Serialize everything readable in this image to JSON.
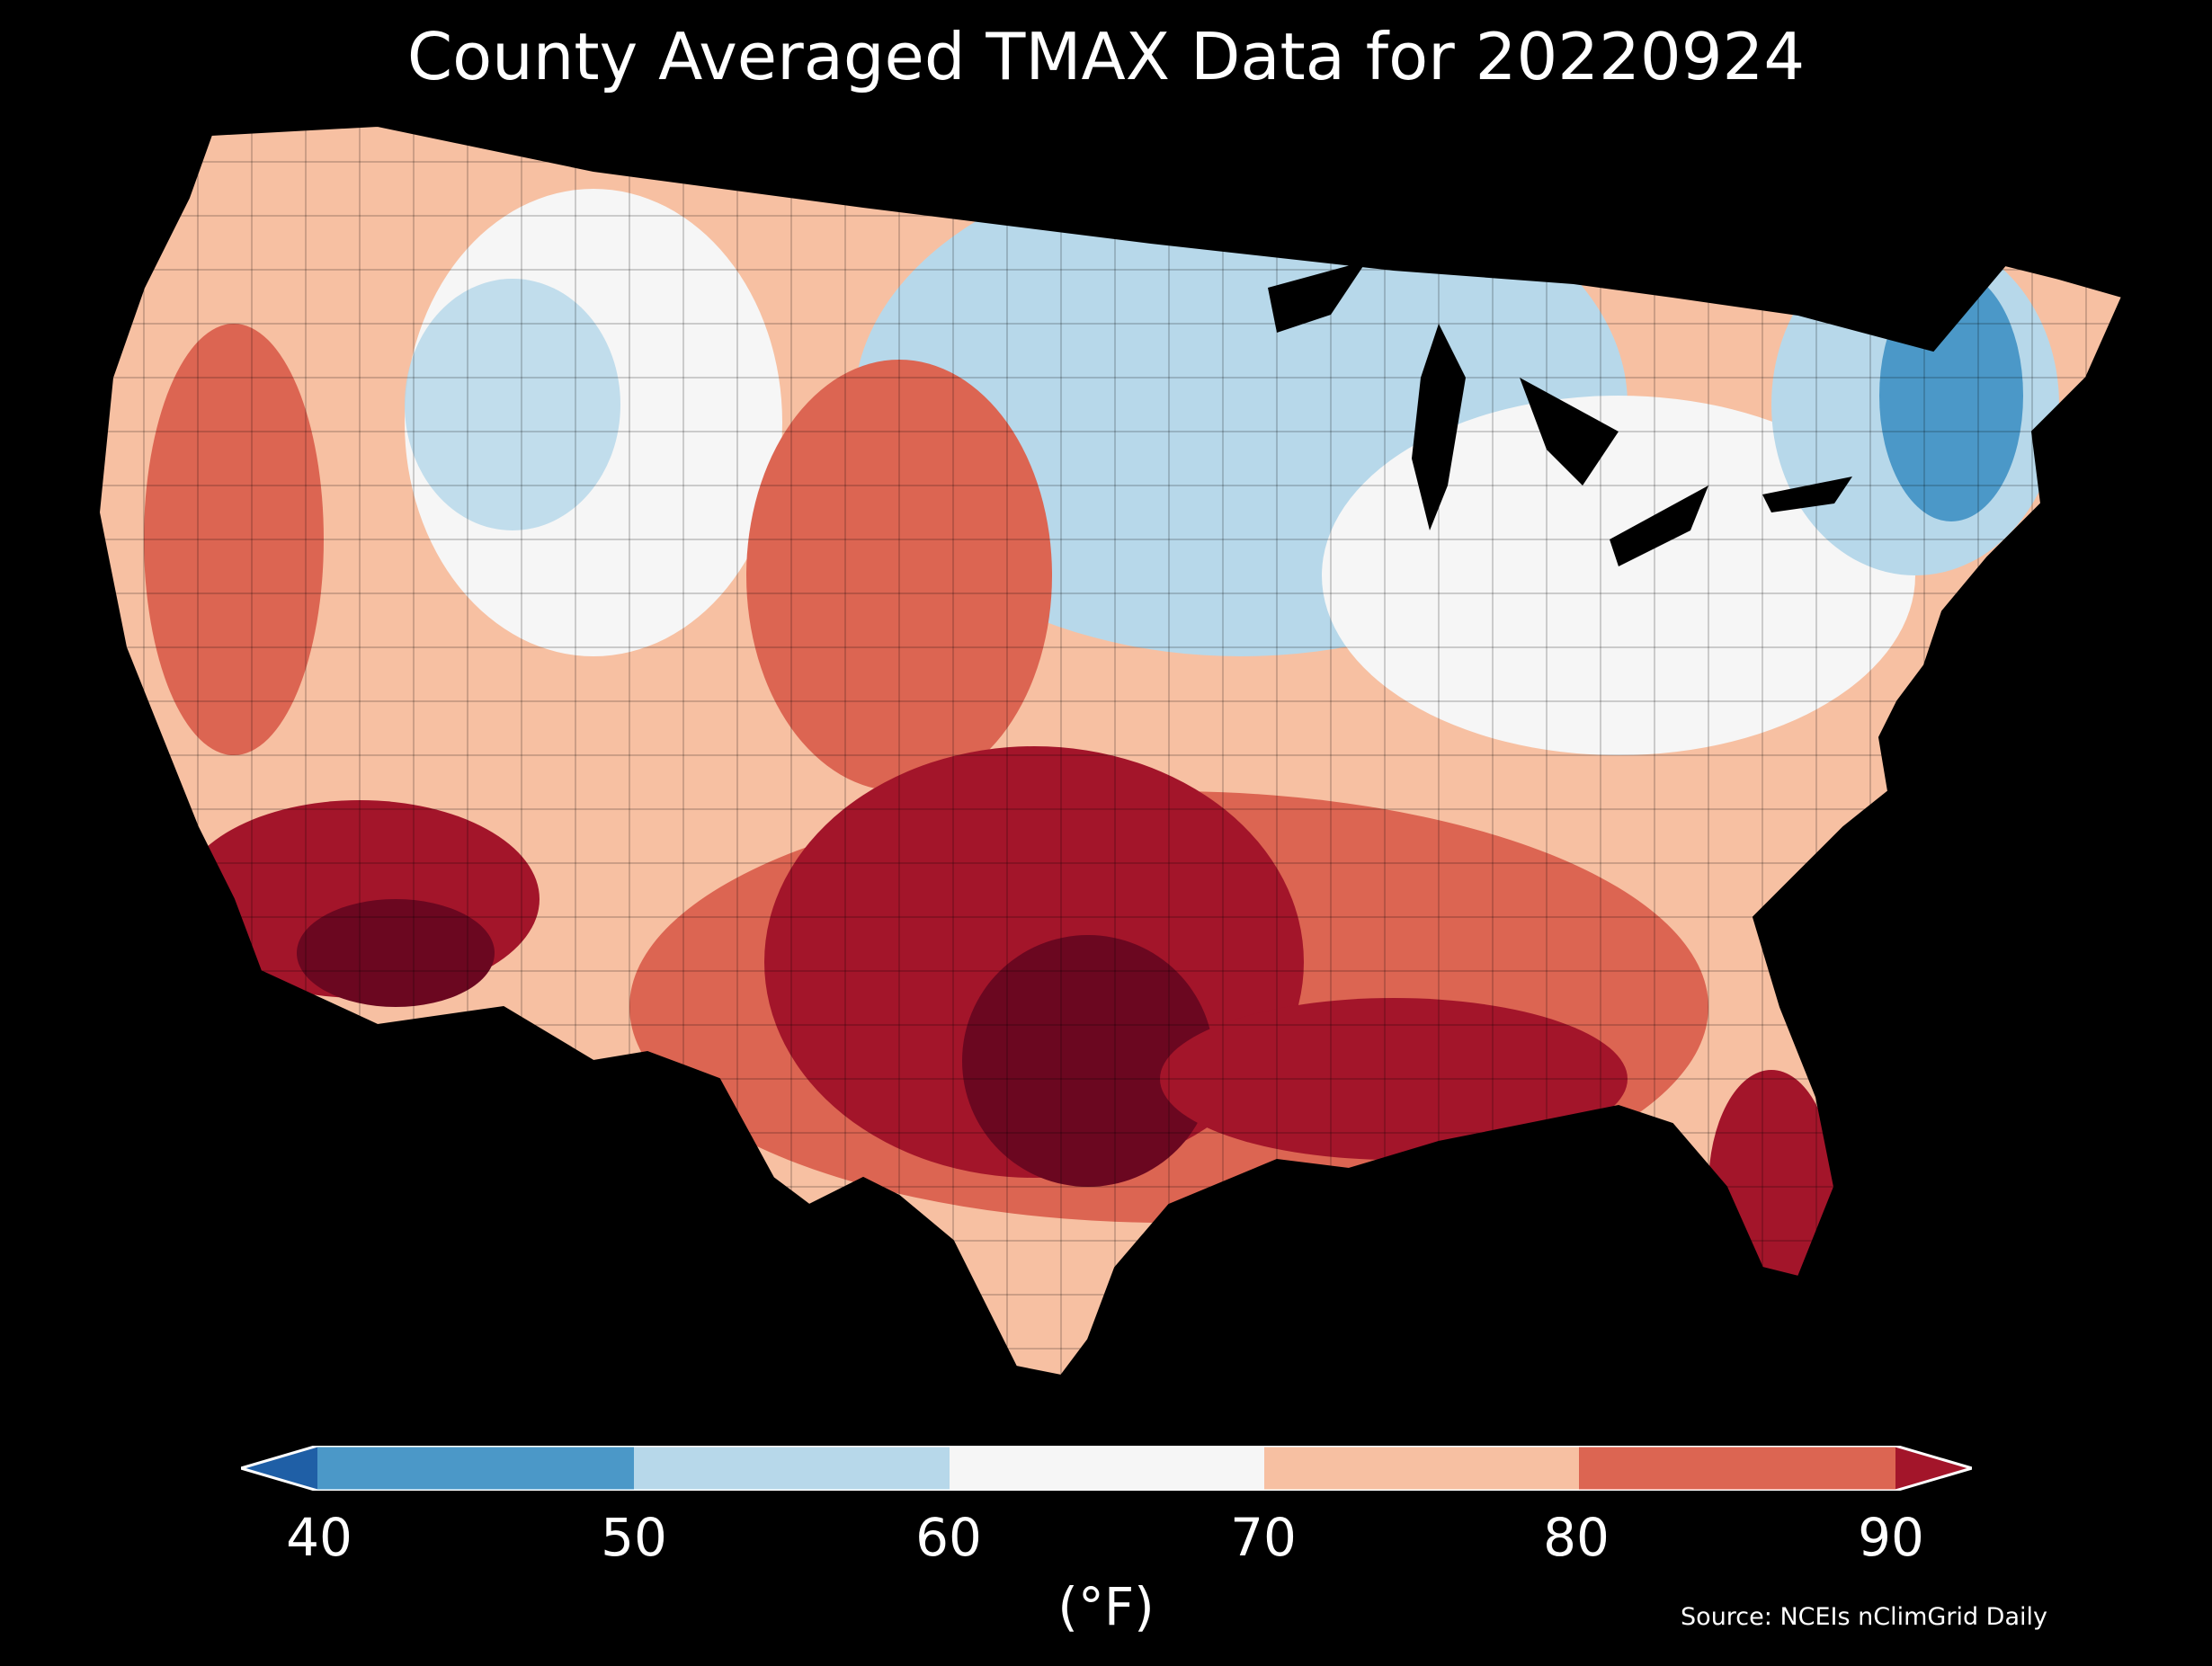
{
  "title": "County Averaged TMAX Data for 20220924",
  "colorbar": {
    "ticks": [
      "40",
      "50",
      "60",
      "70",
      "80",
      "90"
    ],
    "unit": "(°F)",
    "bins": [
      {
        "range": "<40",
        "color": "#1f5fa6"
      },
      {
        "range": "40-50",
        "color": "#4b98c8"
      },
      {
        "range": "50-60",
        "color": "#b7d8ea"
      },
      {
        "range": "60-70",
        "color": "#f6f6f6"
      },
      {
        "range": "70-80",
        "color": "#f7c0a2"
      },
      {
        "range": "80-90",
        "color": "#dc6552"
      },
      {
        "range": ">90",
        "color": "#a3152a"
      }
    ]
  },
  "source": "Source: NCEIs nClimGrid Daily",
  "map_colors": {
    "cold": "#4b98c8",
    "cool": "#b7d8ea",
    "mild": "#f6f6f6",
    "warm": "#f7c0a2",
    "hot": "#dc6552",
    "very_hot": "#a3152a",
    "extreme": "#6b0720"
  }
}
